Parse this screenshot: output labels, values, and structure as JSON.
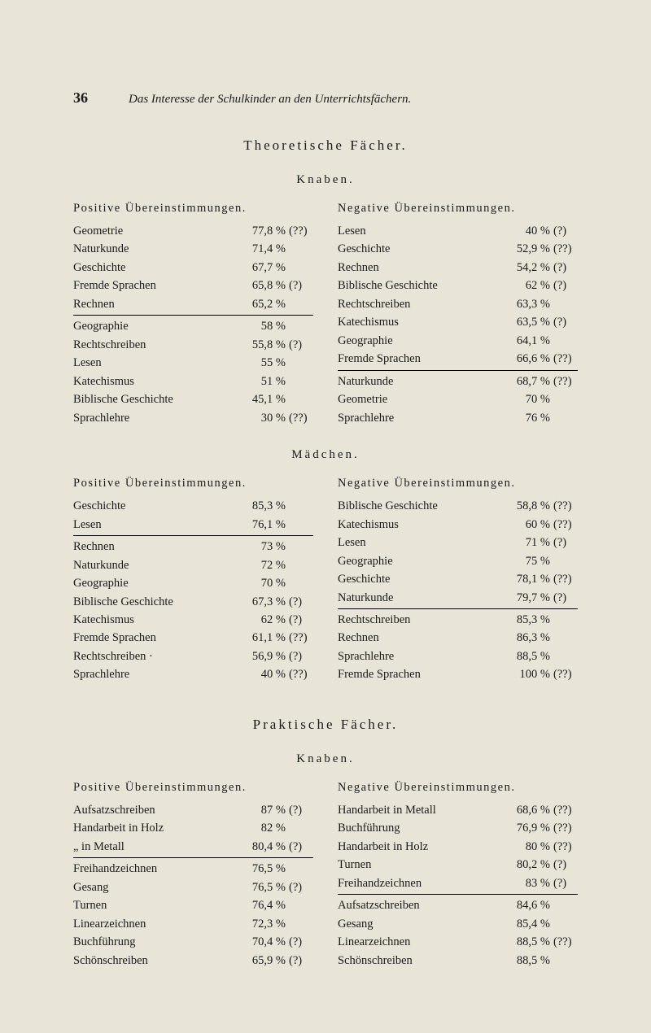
{
  "pageNumber": "36",
  "runningTitle": "Das Interesse der Schulkinder an den Unterrichtsfächern.",
  "section1": {
    "title": "Theoretische Fächer.",
    "sub1": {
      "title": "Knaben.",
      "left": {
        "heading": "Positive Übereinstimmungen.",
        "group1": [
          {
            "label": "Geometrie",
            "value": "77,8 %",
            "note": "(??)"
          },
          {
            "label": "Naturkunde",
            "value": "71,4 %",
            "note": ""
          },
          {
            "label": "Geschichte",
            "value": "67,7 %",
            "note": ""
          },
          {
            "label": "Fremde Sprachen",
            "value": "65,8 %",
            "note": "(?)"
          },
          {
            "label": "Rechnen",
            "value": "65,2 %",
            "note": ""
          }
        ],
        "group2": [
          {
            "label": "Geographie",
            "value": "58  %",
            "note": ""
          },
          {
            "label": "Rechtschreiben",
            "value": "55,8 %",
            "note": "(?)"
          },
          {
            "label": "Lesen",
            "value": "55  %",
            "note": ""
          },
          {
            "label": "Katechismus",
            "value": "51  %",
            "note": ""
          },
          {
            "label": "Biblische Geschichte",
            "value": "45,1 %",
            "note": ""
          },
          {
            "label": "Sprachlehre",
            "value": "30  %",
            "note": "(??)"
          }
        ]
      },
      "right": {
        "heading": "Negative Übereinstimmungen.",
        "group1": [
          {
            "label": "Lesen",
            "value": "40  %",
            "note": "(?)"
          },
          {
            "label": "Geschichte",
            "value": "52,9 %",
            "note": "(??)"
          },
          {
            "label": "Rechnen",
            "value": "54,2 %",
            "note": "(?)"
          },
          {
            "label": "Biblische Geschichte",
            "value": "62  %",
            "note": "(?)"
          },
          {
            "label": "Rechtschreiben",
            "value": "63,3 %",
            "note": ""
          },
          {
            "label": "Katechismus",
            "value": "63,5 %",
            "note": "(?)"
          },
          {
            "label": "Geographie",
            "value": "64,1 %",
            "note": ""
          },
          {
            "label": "Fremde Sprachen",
            "value": "66,6 %",
            "note": "(??)"
          }
        ],
        "group2": [
          {
            "label": "Naturkunde",
            "value": "68,7 %",
            "note": "(??)"
          },
          {
            "label": "Geometrie",
            "value": "70  %",
            "note": ""
          },
          {
            "label": "Sprachlehre",
            "value": "76  %",
            "note": ""
          }
        ]
      }
    },
    "sub2": {
      "title": "Mädchen.",
      "left": {
        "heading": "Positive Übereinstimmungen.",
        "group1": [
          {
            "label": "Geschichte",
            "value": "85,3 %",
            "note": ""
          },
          {
            "label": "Lesen",
            "value": "76,1 %",
            "note": ""
          }
        ],
        "group2": [
          {
            "label": "Rechnen",
            "value": "73  %",
            "note": ""
          },
          {
            "label": "Naturkunde",
            "value": "72  %",
            "note": ""
          },
          {
            "label": "Geographie",
            "value": "70  %",
            "note": ""
          },
          {
            "label": "Biblische Geschichte",
            "value": "67,3 %",
            "note": "(?)"
          },
          {
            "label": "Katechismus",
            "value": "62  %",
            "note": "(?)"
          },
          {
            "label": "Fremde Sprachen",
            "value": "61,1 %",
            "note": "(??)"
          },
          {
            "label": "Rechtschreiben ·",
            "value": "56,9 %",
            "note": "(?)"
          },
          {
            "label": "Sprachlehre",
            "value": "40  %",
            "note": "(??)"
          }
        ]
      },
      "right": {
        "heading": "Negative Übereinstimmungen.",
        "group1": [
          {
            "label": "Biblische Geschichte",
            "value": "58,8 %",
            "note": "(??)"
          },
          {
            "label": "Katechismus",
            "value": "60  %",
            "note": "(??)"
          },
          {
            "label": "Lesen",
            "value": "71  %",
            "note": "(?)"
          },
          {
            "label": "Geographie",
            "value": "75  %",
            "note": ""
          },
          {
            "label": "Geschichte",
            "value": "78,1 %",
            "note": "(??)"
          },
          {
            "label": "Naturkunde",
            "value": "79,7 %",
            "note": "(?)"
          }
        ],
        "group2": [
          {
            "label": "Rechtschreiben",
            "value": "85,3 %",
            "note": ""
          },
          {
            "label": "Rechnen",
            "value": "86,3 %",
            "note": ""
          },
          {
            "label": "Sprachlehre",
            "value": "88,5 %",
            "note": ""
          },
          {
            "label": "Fremde Sprachen",
            "value": "100  %",
            "note": "(??)"
          }
        ]
      }
    }
  },
  "section2": {
    "title": "Praktische Fächer.",
    "sub1": {
      "title": "Knaben.",
      "left": {
        "heading": "Positive Übereinstimmungen.",
        "group1": [
          {
            "label": "Aufsatzschreiben",
            "value": "87  %",
            "note": "(?)"
          },
          {
            "label": "Handarbeit in Holz",
            "value": "82  %",
            "note": ""
          },
          {
            "label": "     „         in Metall",
            "value": "80,4 %",
            "note": "(?)"
          }
        ],
        "group2": [
          {
            "label": "Freihandzeichnen",
            "value": "76,5 %",
            "note": ""
          },
          {
            "label": "Gesang",
            "value": "76,5 %",
            "note": "(?)"
          },
          {
            "label": "Turnen",
            "value": "76,4 %",
            "note": ""
          },
          {
            "label": "Linearzeichnen",
            "value": "72,3 %",
            "note": ""
          },
          {
            "label": "Buchführung",
            "value": "70,4 %",
            "note": "(?)"
          },
          {
            "label": "Schönschreiben",
            "value": "65,9 %",
            "note": "(?)"
          }
        ]
      },
      "right": {
        "heading": "Negative Übereinstimmungen.",
        "group1": [
          {
            "label": "Handarbeit in Metall",
            "value": "68,6 %",
            "note": "(??)"
          },
          {
            "label": "Buchführung",
            "value": "76,9 %",
            "note": "(??)"
          },
          {
            "label": "Handarbeit in Holz",
            "value": "80  %",
            "note": "(??)"
          },
          {
            "label": "Turnen",
            "value": "80,2 %",
            "note": "(?)"
          },
          {
            "label": "Freihandzeichnen",
            "value": "83  %",
            "note": "(?)"
          }
        ],
        "group2": [
          {
            "label": "Aufsatzschreiben",
            "value": "84,6 %",
            "note": ""
          },
          {
            "label": "Gesang",
            "value": "85,4 %",
            "note": ""
          },
          {
            "label": "Linearzeichnen",
            "value": "88,5 %",
            "note": "(??)"
          },
          {
            "label": "Schönschreiben",
            "value": "88,5 %",
            "note": ""
          }
        ]
      }
    }
  }
}
